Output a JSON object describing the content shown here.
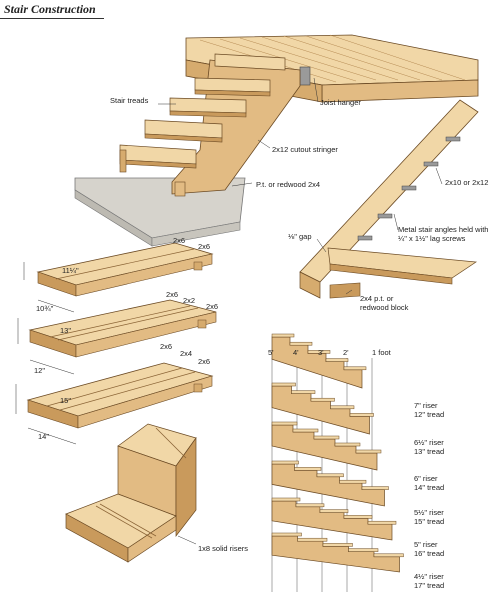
{
  "title": "Stair Construction",
  "colors": {
    "wood_light": "#f1d7a7",
    "wood_mid": "#e2bb83",
    "wood_dark": "#c99a5c",
    "wood_edge": "#6b4a24",
    "concrete": "#d6d3cc",
    "metal": "#9a9a9a"
  },
  "main_view": {
    "stair_treads": "Stair treads",
    "joist_hanger": "Joist hanger",
    "cutout_stringer": "2x12 cutout stringer",
    "pt_redwood": "P.t. or redwood 2x4"
  },
  "side_view": {
    "stringer": "2x10 or 2x12",
    "angles": "Metal stair angles held with ¼\" x 1½\" lag screws",
    "gap": "⅛\" gap",
    "block": "2x4 p.t. or redwood block"
  },
  "tread_options": [
    {
      "labels": [
        "2x6",
        "2x6"
      ],
      "depth": "11¼\"",
      "width": "10¾\""
    },
    {
      "labels": [
        "2x6",
        "2x2",
        "2x6"
      ],
      "depth": "13\"",
      "width": "12\""
    },
    {
      "labels": [
        "2x6",
        "2x4",
        "2x6"
      ],
      "depth": "15\"",
      "width": "14\""
    }
  ],
  "risers_label": "1x8 solid risers",
  "scale": {
    "marks": [
      "5'",
      "4'",
      "3'",
      "2'",
      "1 foot"
    ]
  },
  "ratios": [
    {
      "riser": "7\" riser",
      "tread": "12\" tread"
    },
    {
      "riser": "6½\" riser",
      "tread": "13\" tread"
    },
    {
      "riser": "6\" riser",
      "tread": "14\" tread"
    },
    {
      "riser": "5½\" riser",
      "tread": "15\" tread"
    },
    {
      "riser": "5\" riser",
      "tread": "16\" tread"
    },
    {
      "riser": "4½\" riser",
      "tread": "17\" tread"
    }
  ]
}
